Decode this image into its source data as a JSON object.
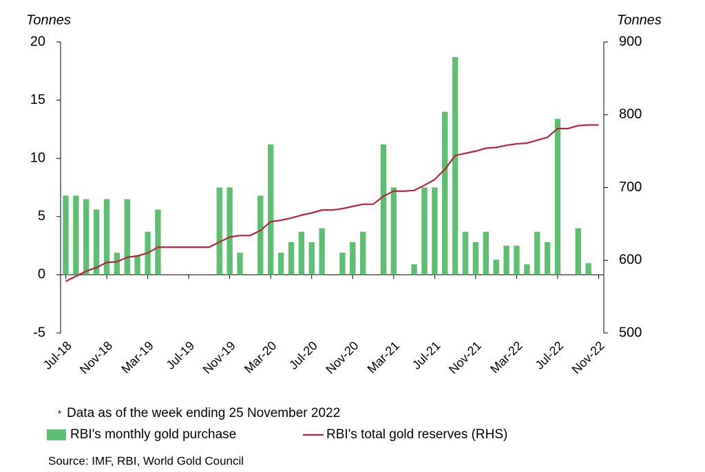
{
  "chart_data": {
    "type": "bar+line",
    "left_axis_label": "Tonnes",
    "right_axis_label": "Tonnes",
    "categories": [
      "Jul-18",
      null,
      null,
      null,
      "Nov-18",
      null,
      null,
      null,
      "Mar-19",
      null,
      null,
      null,
      "Jul-19",
      null,
      null,
      null,
      "Nov-19",
      null,
      null,
      null,
      "Mar-20",
      null,
      null,
      null,
      "Jul-20",
      null,
      null,
      null,
      "Nov-20",
      null,
      null,
      null,
      "Mar-21",
      null,
      null,
      null,
      "Jul-21",
      null,
      null,
      null,
      "Nov-21",
      null,
      null,
      null,
      "Mar-22",
      null,
      null,
      null,
      "Jul-22",
      null,
      null,
      null,
      "Nov-22"
    ],
    "series": [
      {
        "name": "RBI's monthly gold purchase",
        "type": "bar",
        "color": "#5cbf72",
        "values": [
          6.8,
          6.8,
          6.5,
          5.6,
          6.5,
          1.9,
          6.5,
          1.7,
          3.7,
          5.6,
          null,
          null,
          null,
          null,
          null,
          7.5,
          7.5,
          1.9,
          null,
          6.8,
          11.2,
          1.9,
          2.8,
          3.7,
          2.8,
          4.0,
          null,
          1.9,
          2.8,
          3.7,
          null,
          11.2,
          7.5,
          null,
          0.9,
          7.5,
          7.5,
          14.0,
          18.7,
          3.7,
          2.8,
          3.7,
          1.3,
          2.5,
          2.5,
          0.9,
          3.7,
          2.8,
          13.4,
          null,
          4.0,
          1.0,
          null
        ]
      },
      {
        "name": "RBI's total gold reserves (RHS)",
        "type": "line",
        "axis": "y2",
        "color": "#b5213a",
        "values": [
          571,
          578,
          585,
          590,
          597,
          598,
          604,
          606,
          610,
          618,
          618,
          618,
          618,
          618,
          618,
          625,
          632,
          634,
          634,
          641,
          653,
          655,
          658,
          662,
          665,
          669,
          669,
          671,
          674,
          677,
          677,
          688,
          695,
          695,
          696,
          703,
          711,
          725,
          744,
          747,
          750,
          754,
          755,
          758,
          760,
          761,
          765,
          769,
          781,
          781,
          785,
          786,
          786
        ]
      }
    ],
    "ylim": [
      -5,
      20
    ],
    "yticks": [
      20,
      15,
      10,
      5,
      0,
      -5
    ],
    "y2lim": [
      500,
      900
    ],
    "y2ticks": [
      900,
      800,
      700,
      600,
      500
    ],
    "legend": "bottom",
    "footnote_marker": "*",
    "note": "Data as of the week ending 25 November 2022",
    "source": "Source: IMF, RBI, World Gold Council"
  }
}
